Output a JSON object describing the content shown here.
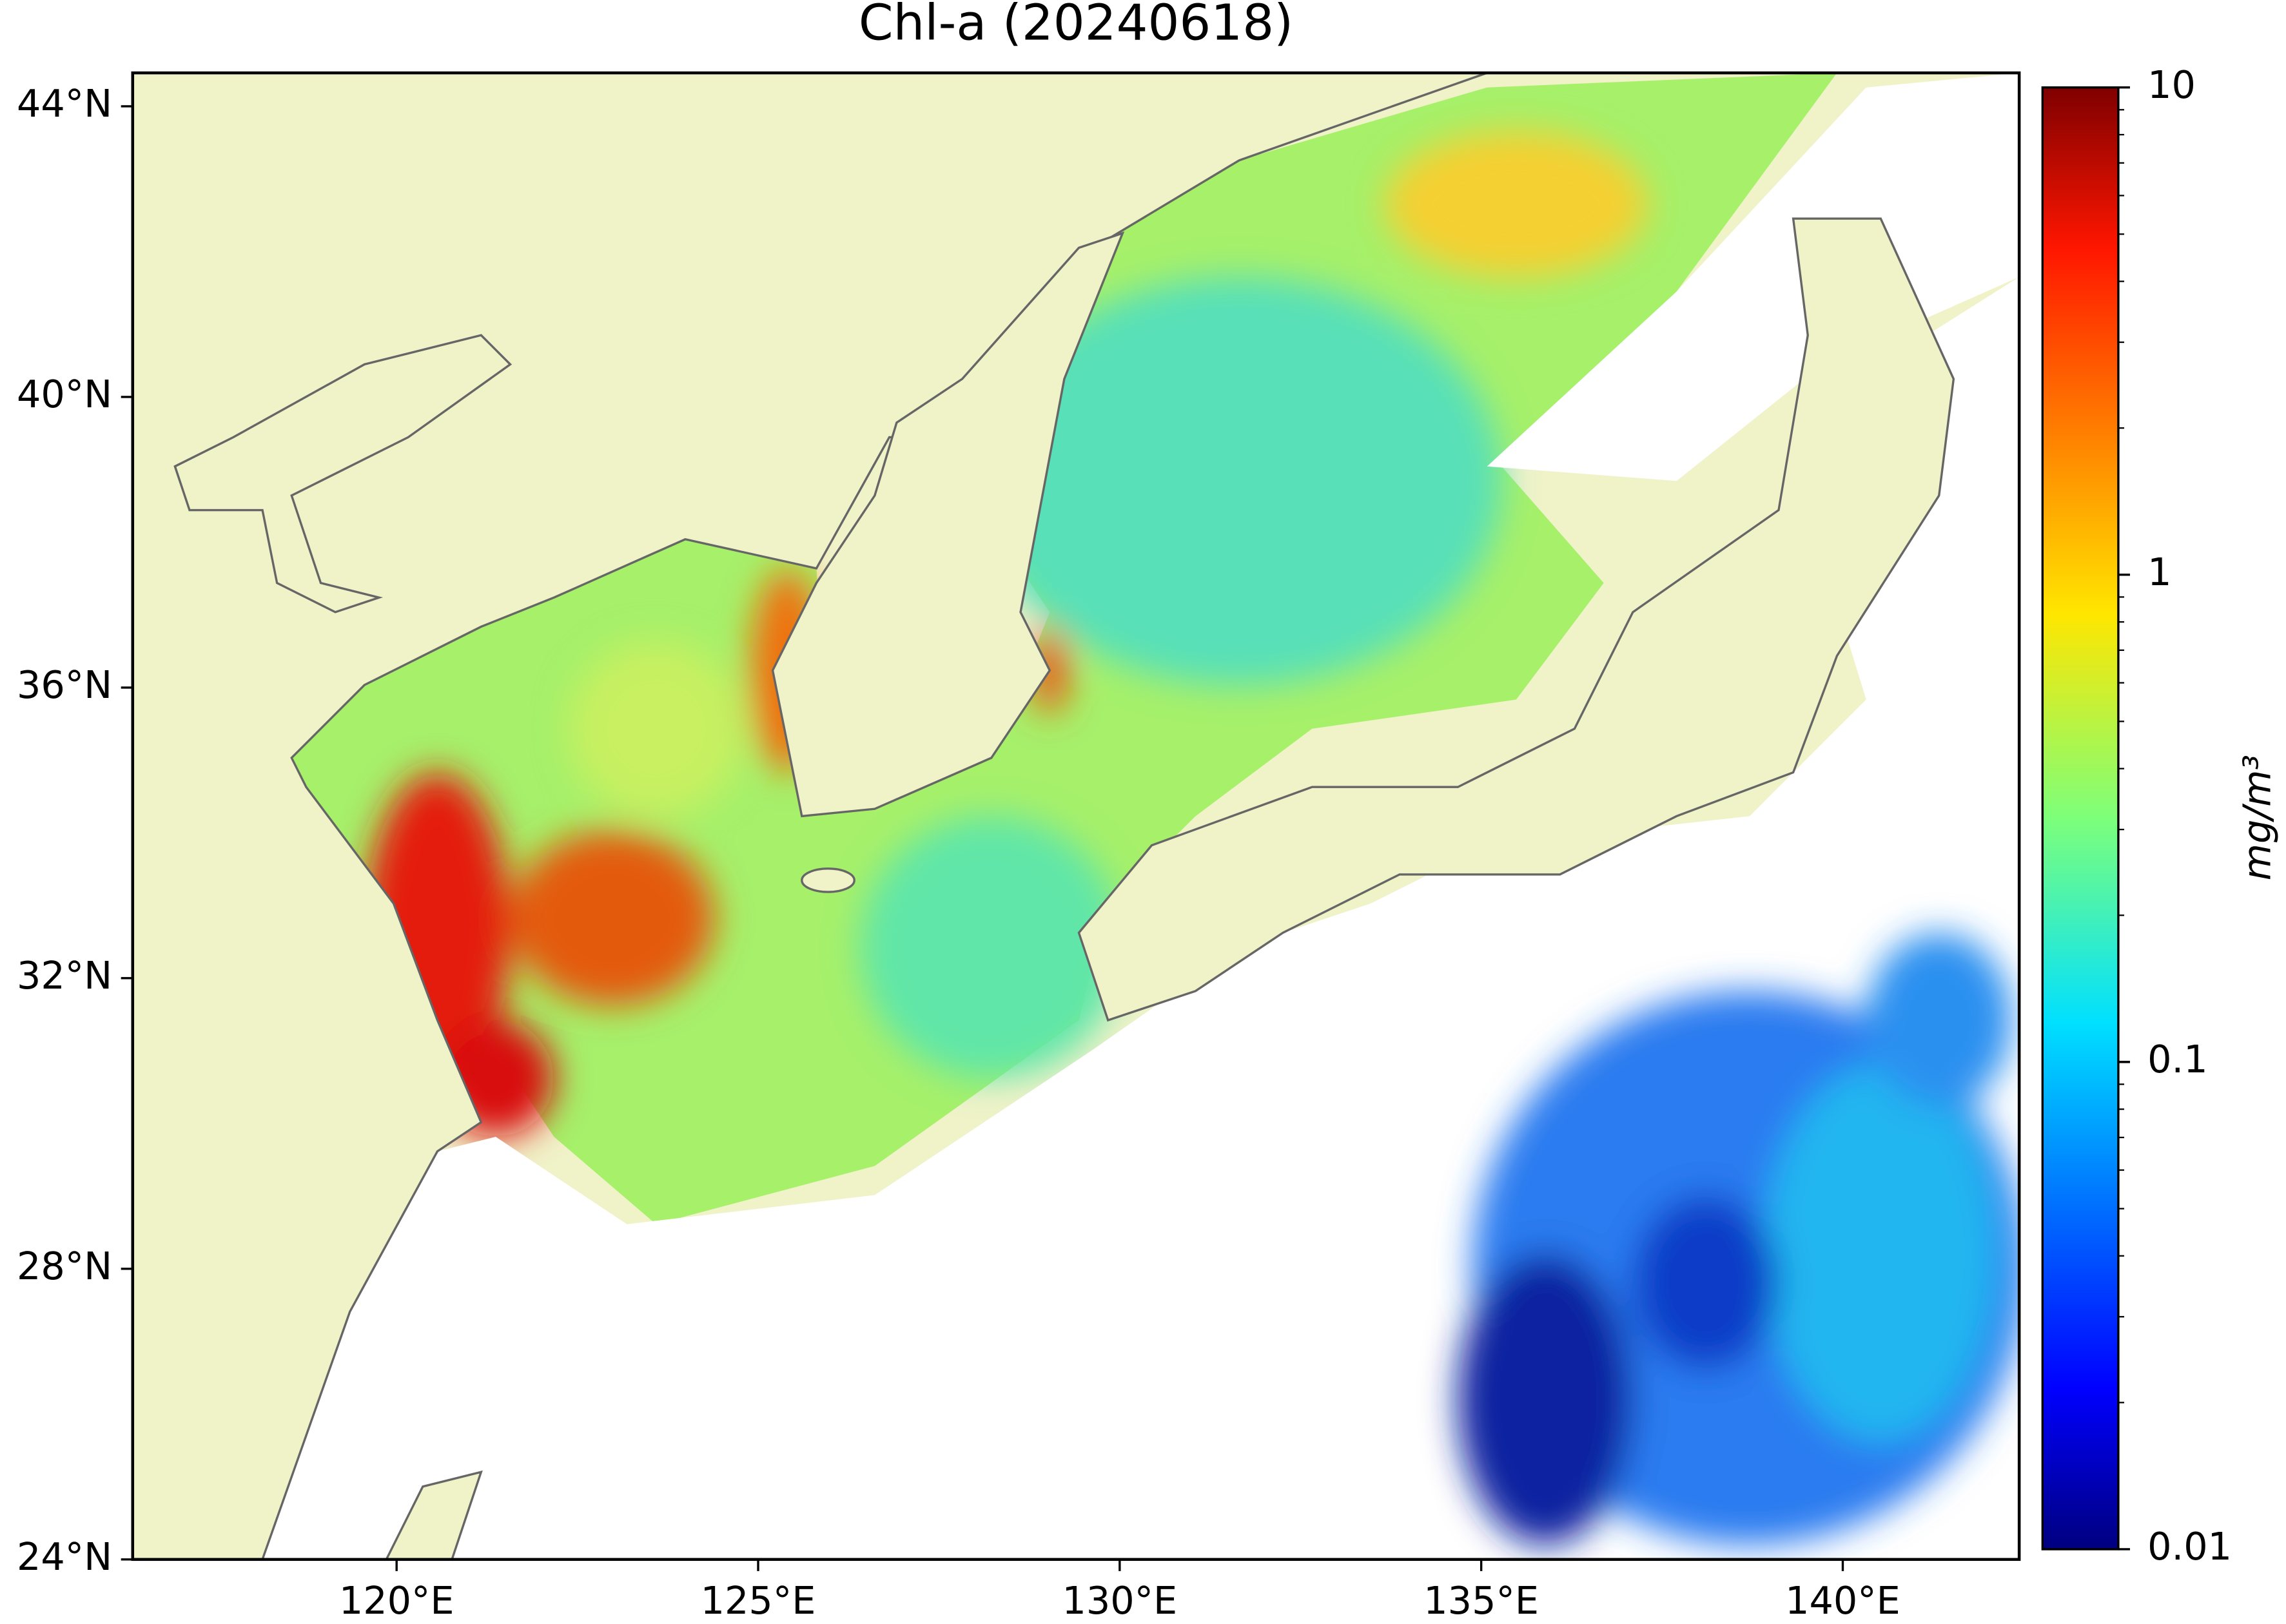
{
  "chart_data": {
    "type": "map",
    "title": "Chl-a (20240618)",
    "xlim": [
      116.35,
      142.44
    ],
    "ylim": [
      24,
      44.46
    ],
    "xticks": [
      {
        "value": 120,
        "label": "120°E"
      },
      {
        "value": 125,
        "label": "125°E"
      },
      {
        "value": 130,
        "label": "130°E"
      },
      {
        "value": 135,
        "label": "135°E"
      },
      {
        "value": 140,
        "label": "140°E"
      }
    ],
    "yticks": [
      {
        "value": 24,
        "label": "24°N"
      },
      {
        "value": 28,
        "label": "28°N"
      },
      {
        "value": 32,
        "label": "32°N"
      },
      {
        "value": 36,
        "label": "36°N"
      },
      {
        "value": 40,
        "label": "40°N"
      },
      {
        "value": 44,
        "label": "44°N"
      }
    ],
    "colorbar": {
      "label": "mg/m³",
      "log": true,
      "lim": [
        0.01,
        10
      ],
      "ticks": [
        0.01,
        0.1,
        1,
        10
      ],
      "colormap": "jet"
    }
  }
}
